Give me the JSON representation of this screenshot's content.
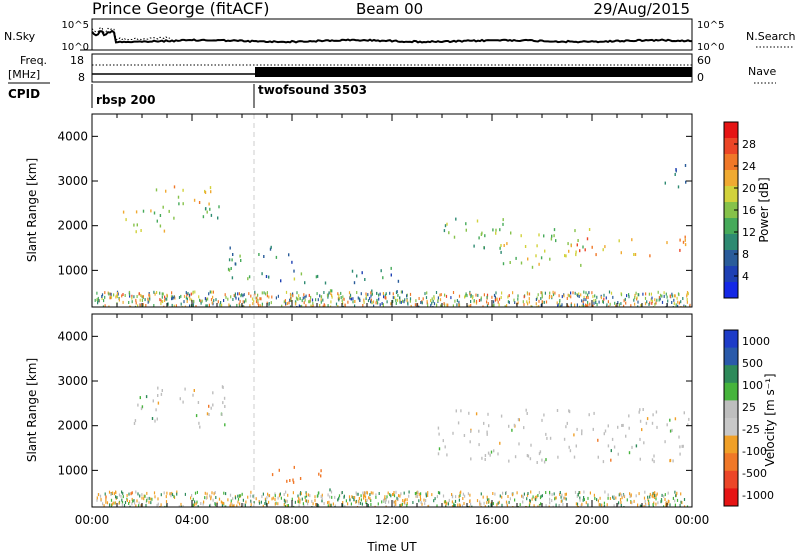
{
  "header": {
    "station": "Prince George (fitACF)",
    "beam": "Beam 00",
    "date": "29/Aug/2015"
  },
  "panels": {
    "noise": {
      "left_label": "N.Sky",
      "left_ticks": [
        "10^5",
        "10^0"
      ],
      "right_label": "N.Search",
      "right_ticks": [
        "10^5",
        "10^0"
      ]
    },
    "freq": {
      "left_label_1": "Freq.",
      "left_label_2": "[MHz]",
      "left_ticks": [
        "18",
        "8"
      ],
      "right_label": "Nave",
      "right_ticks": [
        "60",
        "0"
      ]
    },
    "cpid": {
      "label": "CPID",
      "segments": [
        {
          "name": "rbsp 200",
          "start_hour": 0
        },
        {
          "name": "twofsound 3503",
          "start_hour": 6.5
        }
      ]
    }
  },
  "colors": {
    "power": [
      "#1428e6",
      "#1e40b4",
      "#2a5c9a",
      "#2e8a72",
      "#46aa5a",
      "#86c24a",
      "#d2d23c",
      "#f0aa32",
      "#f07828",
      "#ec4626",
      "#e61414"
    ],
    "velocity": [
      "#1e3cc8",
      "#2a5aaa",
      "#2e8a5a",
      "#46b43c",
      "#bebebe",
      "#c8c8c8",
      "#f0a028",
      "#f07828",
      "#ec4628",
      "#e61414"
    ]
  },
  "chart_data": [
    {
      "type": "heatmap",
      "title": "Power",
      "ylabel": "Slant Range [km]",
      "xlabel": "",
      "xlim": [
        0,
        24
      ],
      "ylim": [
        180,
        4500
      ],
      "yticks": [
        1000,
        2000,
        3000,
        4000
      ],
      "colorbar": {
        "label": "Power [dB]",
        "range": [
          0,
          32
        ],
        "ticks": [
          4,
          8,
          12,
          16,
          20,
          24,
          28
        ]
      },
      "echo_regions": [
        {
          "t0": 0.6,
          "t1": 3.3,
          "r0": 1850,
          "r1": 2400,
          "power": 18
        },
        {
          "t0": 2.2,
          "t1": 4.8,
          "r0": 2400,
          "r1": 2950,
          "power": 20
        },
        {
          "t0": 4.4,
          "t1": 5.5,
          "r0": 2100,
          "r1": 2700,
          "power": 12
        },
        {
          "t0": 5.4,
          "t1": 8.3,
          "r0": 800,
          "r1": 1600,
          "power": 10
        },
        {
          "t0": 7.8,
          "t1": 9.6,
          "r0": 300,
          "r1": 1000,
          "power": 14
        },
        {
          "t0": 9.0,
          "t1": 10.6,
          "r0": 250,
          "r1": 550,
          "power": 24
        },
        {
          "t0": 10.3,
          "t1": 12.4,
          "r0": 300,
          "r1": 1100,
          "power": 8
        },
        {
          "t0": 14.0,
          "t1": 16.5,
          "r0": 1500,
          "r1": 2200,
          "power": 14
        },
        {
          "t0": 16.0,
          "t1": 20.0,
          "r0": 1100,
          "r1": 2000,
          "power": 16
        },
        {
          "t0": 19.0,
          "t1": 23.9,
          "r0": 1350,
          "r1": 1800,
          "power": 24
        },
        {
          "t0": 22.8,
          "t1": 23.8,
          "r0": 2900,
          "r1": 3500,
          "power": 8
        }
      ]
    },
    {
      "type": "heatmap",
      "title": "Velocity",
      "ylabel": "Slant Range [km]",
      "xlabel": "Time UT",
      "xlim": [
        0,
        24
      ],
      "ylim": [
        180,
        4500
      ],
      "xticks": [
        "00:00",
        "04:00",
        "08:00",
        "12:00",
        "16:00",
        "20:00",
        "00:00"
      ],
      "yticks": [
        1000,
        2000,
        3000,
        4000
      ],
      "colorbar": {
        "label": "Velocity [m s⁻¹]",
        "ticks": [
          "1000",
          "500",
          "100",
          "25",
          "-25",
          "-100",
          "-500",
          "-1000"
        ]
      },
      "echo_regions": [
        {
          "t0": 1.5,
          "t1": 5.3,
          "r0": 2000,
          "r1": 2950,
          "velocity": 0
        },
        {
          "t0": 6.8,
          "t1": 9.2,
          "r0": 700,
          "r1": 1100,
          "velocity": -300
        },
        {
          "t0": 9.0,
          "t1": 11.2,
          "r0": 300,
          "r1": 600,
          "velocity": 150
        },
        {
          "t0": 13.8,
          "t1": 23.9,
          "r0": 1200,
          "r1": 2400,
          "velocity": 0
        },
        {
          "t0": 0.5,
          "t1": 2.0,
          "r0": 400,
          "r1": 600,
          "velocity": -300
        }
      ]
    }
  ]
}
